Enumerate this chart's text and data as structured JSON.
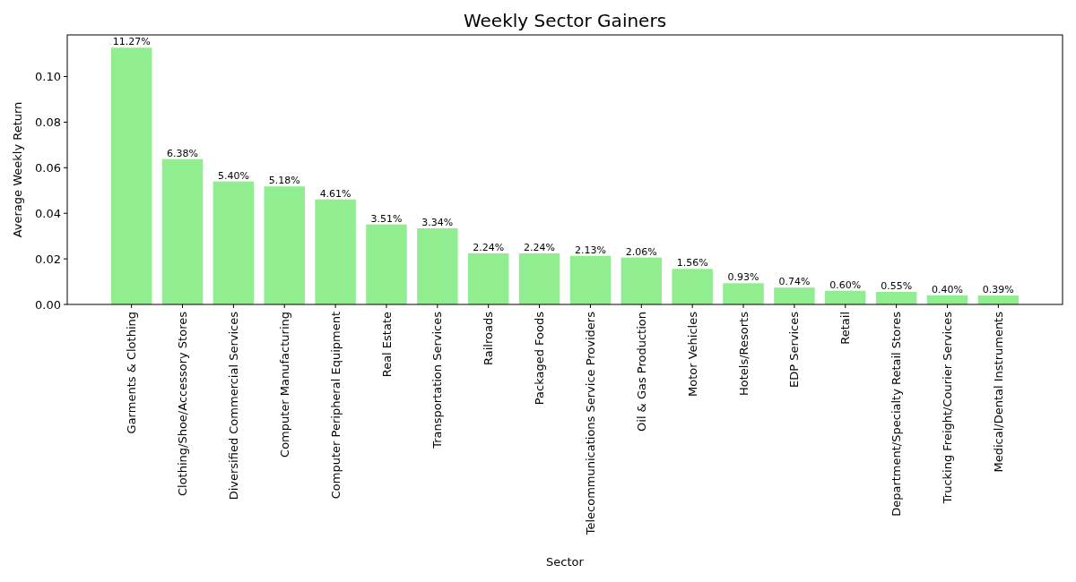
{
  "chart_data": {
    "type": "bar",
    "title": "Weekly Sector Gainers",
    "xlabel": "Sector",
    "ylabel": "Average Weekly Return",
    "categories": [
      "Garments & Clothing",
      "Clothing/Shoe/Accessory Stores",
      "Diversified Commercial Services",
      "Computer Manufacturing",
      "Computer Peripheral Equipment",
      "Real Estate",
      "Transportation Services",
      "Railroads",
      "Packaged Foods",
      "Telecommunications Service Providers",
      "Oil & Gas Production",
      "Motor Vehicles",
      "Hotels/Resorts",
      "EDP Services",
      "Retail",
      "Department/Specialty Retail Stores",
      "Trucking Freight/Courier Services",
      "Medical/Dental Instruments"
    ],
    "values": [
      0.1127,
      0.0638,
      0.054,
      0.0518,
      0.0461,
      0.0351,
      0.0334,
      0.0224,
      0.0224,
      0.0213,
      0.0206,
      0.0156,
      0.0093,
      0.0074,
      0.006,
      0.0055,
      0.004,
      0.0039
    ],
    "value_labels": [
      "11.27%",
      "6.38%",
      "5.40%",
      "5.18%",
      "4.61%",
      "3.51%",
      "3.34%",
      "2.24%",
      "2.24%",
      "2.13%",
      "2.06%",
      "1.56%",
      "0.93%",
      "0.74%",
      "0.60%",
      "0.55%",
      "0.40%",
      "0.39%"
    ],
    "color": "#90ee90",
    "ylim": [
      0,
      0.1183
    ],
    "yticks": [
      {
        "value": 0,
        "label": "0.00"
      },
      {
        "value": 0.02,
        "label": "0.02"
      },
      {
        "value": 0.04,
        "label": "0.04"
      },
      {
        "value": 0.06,
        "label": "0.06"
      },
      {
        "value": 0.08,
        "label": "0.08"
      },
      {
        "value": 0.1,
        "label": "0.10"
      }
    ],
    "grid": false
  }
}
